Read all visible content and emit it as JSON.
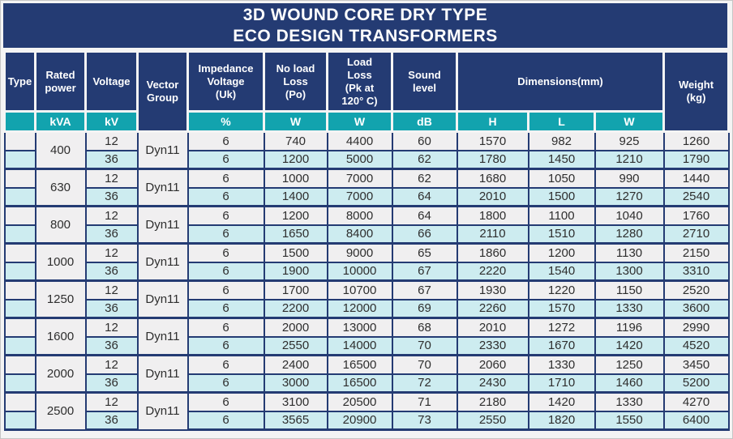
{
  "title": {
    "line1": "3D WOUND CORE DRY TYPE",
    "line2": "ECO DESIGN TRANSFORMERS"
  },
  "colors": {
    "header_navy": "#243b73",
    "unit_teal": "#12a3ae",
    "row_gray": "#f0eff0",
    "row_cyan": "#cdecf0",
    "grid_border": "#243b73",
    "header_text": "#ffffff",
    "data_text": "#2e2e2e"
  },
  "table": {
    "columns": {
      "type": "Type",
      "rated_power": "Rated\npower",
      "voltage": "Voltage",
      "vector_group": "Vector\nGroup",
      "impedance": "Impedance\nVoltage\n(Uk)",
      "no_load_loss": "No load\nLoss\n(Po)",
      "load_loss": "Load\nLoss\n(Pk at\n120° C)",
      "sound_level": "Sound\nlevel",
      "dimensions": "Dimensions(mm)",
      "weight": "Weight\n(kg)"
    },
    "units": {
      "type": "",
      "rated_power": "kVA",
      "voltage": "kV",
      "impedance": "%",
      "no_load_loss": "W",
      "load_loss": "W",
      "sound_level": "dB",
      "dim_h": "H",
      "dim_l": "L",
      "dim_w": "W"
    },
    "groups": [
      {
        "rated_power": "400",
        "vector_group": "Dyn11",
        "rows": [
          {
            "voltage": "12",
            "impedance": "6",
            "no_load_loss": "740",
            "load_loss": "4400",
            "sound_level": "60",
            "h": "1570",
            "l": "982",
            "w": "925",
            "weight": "1260"
          },
          {
            "voltage": "36",
            "impedance": "6",
            "no_load_loss": "1200",
            "load_loss": "5000",
            "sound_level": "62",
            "h": "1780",
            "l": "1450",
            "w": "1210",
            "weight": "1790"
          }
        ]
      },
      {
        "rated_power": "630",
        "vector_group": "Dyn11",
        "rows": [
          {
            "voltage": "12",
            "impedance": "6",
            "no_load_loss": "1000",
            "load_loss": "7000",
            "sound_level": "62",
            "h": "1680",
            "l": "1050",
            "w": "990",
            "weight": "1440"
          },
          {
            "voltage": "36",
            "impedance": "6",
            "no_load_loss": "1400",
            "load_loss": "7000",
            "sound_level": "64",
            "h": "2010",
            "l": "1500",
            "w": "1270",
            "weight": "2540"
          }
        ]
      },
      {
        "rated_power": "800",
        "vector_group": "Dyn11",
        "rows": [
          {
            "voltage": "12",
            "impedance": "6",
            "no_load_loss": "1200",
            "load_loss": "8000",
            "sound_level": "64",
            "h": "1800",
            "l": "1100",
            "w": "1040",
            "weight": "1760"
          },
          {
            "voltage": "36",
            "impedance": "6",
            "no_load_loss": "1650",
            "load_loss": "8400",
            "sound_level": "66",
            "h": "2110",
            "l": "1510",
            "w": "1280",
            "weight": "2710"
          }
        ]
      },
      {
        "rated_power": "1000",
        "vector_group": "Dyn11",
        "rows": [
          {
            "voltage": "12",
            "impedance": "6",
            "no_load_loss": "1500",
            "load_loss": "9000",
            "sound_level": "65",
            "h": "1860",
            "l": "1200",
            "w": "1130",
            "weight": "2150"
          },
          {
            "voltage": "36",
            "impedance": "6",
            "no_load_loss": "1900",
            "load_loss": "10000",
            "sound_level": "67",
            "h": "2220",
            "l": "1540",
            "w": "1300",
            "weight": "3310"
          }
        ]
      },
      {
        "rated_power": "1250",
        "vector_group": "Dyn11",
        "rows": [
          {
            "voltage": "12",
            "impedance": "6",
            "no_load_loss": "1700",
            "load_loss": "10700",
            "sound_level": "67",
            "h": "1930",
            "l": "1220",
            "w": "1150",
            "weight": "2520"
          },
          {
            "voltage": "36",
            "impedance": "6",
            "no_load_loss": "2200",
            "load_loss": "12000",
            "sound_level": "69",
            "h": "2260",
            "l": "1570",
            "w": "1330",
            "weight": "3600"
          }
        ]
      },
      {
        "rated_power": "1600",
        "vector_group": "Dyn11",
        "rows": [
          {
            "voltage": "12",
            "impedance": "6",
            "no_load_loss": "2000",
            "load_loss": "13000",
            "sound_level": "68",
            "h": "2010",
            "l": "1272",
            "w": "1196",
            "weight": "2990"
          },
          {
            "voltage": "36",
            "impedance": "6",
            "no_load_loss": "2550",
            "load_loss": "14000",
            "sound_level": "70",
            "h": "2330",
            "l": "1670",
            "w": "1420",
            "weight": "4520"
          }
        ]
      },
      {
        "rated_power": "2000",
        "vector_group": "Dyn11",
        "rows": [
          {
            "voltage": "12",
            "impedance": "6",
            "no_load_loss": "2400",
            "load_loss": "16500",
            "sound_level": "70",
            "h": "2060",
            "l": "1330",
            "w": "1250",
            "weight": "3450"
          },
          {
            "voltage": "36",
            "impedance": "6",
            "no_load_loss": "3000",
            "load_loss": "16500",
            "sound_level": "72",
            "h": "2430",
            "l": "1710",
            "w": "1460",
            "weight": "5200"
          }
        ]
      },
      {
        "rated_power": "2500",
        "vector_group": "Dyn11",
        "rows": [
          {
            "voltage": "12",
            "impedance": "6",
            "no_load_loss": "3100",
            "load_loss": "20500",
            "sound_level": "71",
            "h": "2180",
            "l": "1420",
            "w": "1330",
            "weight": "4270"
          },
          {
            "voltage": "36",
            "impedance": "6",
            "no_load_loss": "3565",
            "load_loss": "20900",
            "sound_level": "73",
            "h": "2550",
            "l": "1820",
            "w": "1550",
            "weight": "6400"
          }
        ]
      }
    ]
  }
}
